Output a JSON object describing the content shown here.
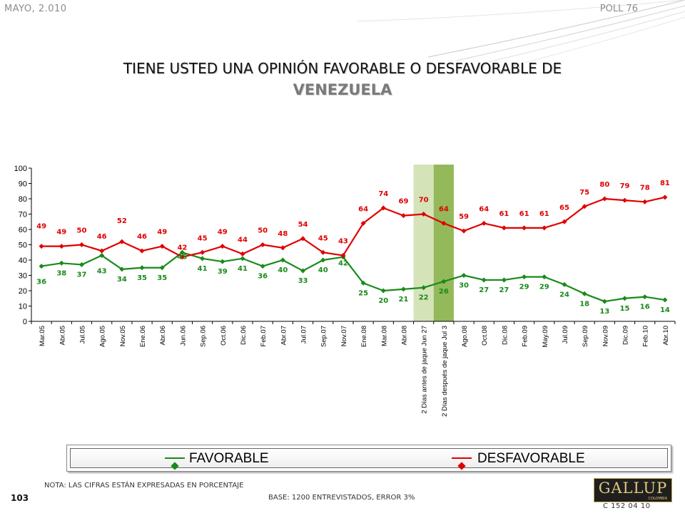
{
  "header": {
    "date": "MAYO, 2.010",
    "poll": "POLL 76"
  },
  "title": {
    "line1": "TIENE USTED UNA OPINIÓN FAVORABLE O DESFAVORABLE DE",
    "line2": "VENEZUELA"
  },
  "chart_data": {
    "type": "line",
    "categories": [
      "Mar.05",
      "Abr.05",
      "Jul.05",
      "Ago.05",
      "Nov.05",
      "Ene.06",
      "Abr.06",
      "Jun.06",
      "Sep.06",
      "Oct.06",
      "Dic.06",
      "Feb.07",
      "Abr.07",
      "Jul.07",
      "Sep.07",
      "Nov.07",
      "Ene.08",
      "Mar.08",
      "Abr.08",
      "2 Días antes de jaque Jun 27",
      "2 Días después de jaque Jul 3",
      "Ago.08",
      "Oct.08",
      "Dic.08",
      "Feb.09",
      "May.09",
      "Jul.09",
      "Sep.09",
      "Nov.09",
      "Dic.09",
      "Feb.10",
      "Abr.10"
    ],
    "series": [
      {
        "name": "FAVORABLE",
        "color": "#1a8a1a",
        "values": [
          36,
          38,
          37,
          43,
          34,
          35,
          35,
          45,
          41,
          39,
          41,
          36,
          40,
          33,
          40,
          42,
          25,
          20,
          21,
          22,
          26,
          30,
          27,
          27,
          29,
          29,
          24,
          18,
          13,
          15,
          16,
          14
        ]
      },
      {
        "name": "DESFAVORABLE",
        "color": "#e00000",
        "values": [
          49,
          49,
          50,
          46,
          52,
          46,
          49,
          42,
          45,
          49,
          44,
          50,
          48,
          54,
          45,
          43,
          64,
          74,
          69,
          70,
          64,
          59,
          64,
          61,
          61,
          61,
          65,
          75,
          80,
          79,
          78,
          81
        ]
      }
    ],
    "fav_labels": [
      "36",
      "38",
      "37",
      "43",
      "34",
      "35",
      "35",
      "45",
      "41",
      "39",
      "41",
      "36",
      "40",
      "33",
      "40",
      "42",
      "25",
      "20",
      "21",
      "22",
      "26",
      "30",
      "27",
      "27",
      "29",
      "29",
      "24",
      "18",
      "13",
      "15",
      "16",
      "14"
    ],
    "des_labels": [
      "49",
      "49",
      "50",
      "46",
      "52",
      "46",
      "49",
      "42",
      "45",
      "49",
      "44",
      "50",
      "48",
      "54",
      "45",
      "43",
      "64",
      "74",
      "69",
      "70",
      "64",
      "59",
      "64",
      "61",
      "61",
      "61",
      "65",
      "75",
      "80",
      "79",
      "78",
      "81"
    ],
    "y_ticks": [
      "0",
      "10",
      "20",
      "30",
      "40",
      "50",
      "60",
      "70",
      "80",
      "90",
      "100"
    ],
    "ylim": [
      0,
      100
    ],
    "highlight_colors": [
      "#d5e3b8",
      "#94b95a"
    ],
    "legend_position": "bottom"
  },
  "legend": {
    "favorable": "FAVORABLE",
    "desfavorable": "DESFAVORABLE"
  },
  "footer": {
    "note": "NOTA: LAS CIFRAS ESTÁN EXPRESADAS EN PORCENTAJE",
    "page": "103",
    "base": "BASE: 1200 ENTREVISTADOS, ERROR 3%",
    "code": "C 152 04 10"
  },
  "logo": {
    "text": "GALLUP",
    "sub": "COLOMBIA"
  }
}
